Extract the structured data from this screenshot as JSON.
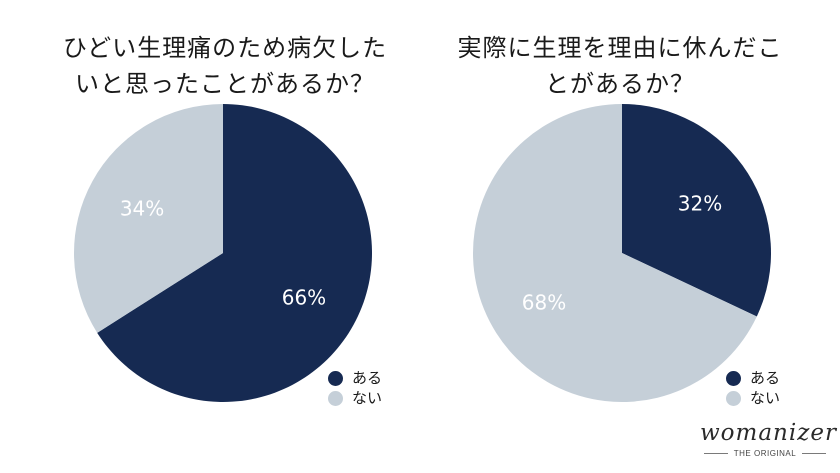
{
  "colors": {
    "navy": "#162a52",
    "light": "#c5cfd8"
  },
  "chart_data": [
    {
      "type": "pie",
      "title": "ひどい生理痛のため病欠したいと思ったことがあるか？",
      "title_lines": [
        "ひどい生理痛のため病欠した",
        "いと思ったことがあるか？"
      ],
      "slices": [
        {
          "label": "ある",
          "value": 66,
          "display": "66%",
          "color": "#162a52"
        },
        {
          "label": "ない",
          "value": 34,
          "display": "34%",
          "color": "#c5cfd8"
        }
      ],
      "legend": [
        "ある",
        "ない"
      ],
      "legend_position": "bottom-right"
    },
    {
      "type": "pie",
      "title": "実際に生理を理由に休んだことがあるか？",
      "title_lines": [
        "実際に生理を理由に休んだこ",
        "とがあるか？"
      ],
      "slices": [
        {
          "label": "ある",
          "value": 32,
          "display": "32%",
          "color": "#162a52"
        },
        {
          "label": "ない",
          "value": 68,
          "display": "68%",
          "color": "#c5cfd8"
        }
      ],
      "legend": [
        "ある",
        "ない"
      ],
      "legend_position": "bottom-right"
    }
  ],
  "brand": {
    "name": "womanizer",
    "tagline": "THE ORIGINAL"
  }
}
